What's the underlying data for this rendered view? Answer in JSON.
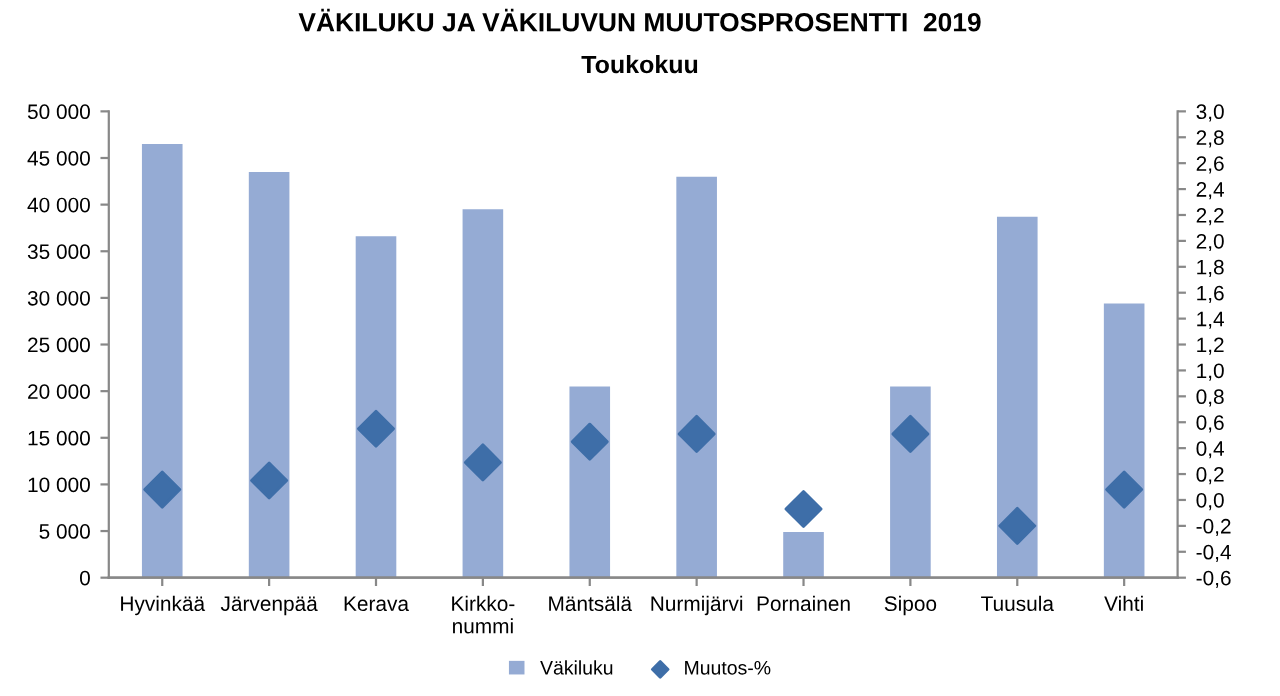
{
  "chart_data": {
    "type": "bar",
    "title": "VÄKILUKU JA VÄKILUVUN MUUTOSPROSENTTI  2019",
    "subtitle": "Toukokuu",
    "categories": [
      "Hyvinkää",
      "Järvenpää",
      "Kerava",
      "Kirkko-\nnummi",
      "Mäntsälä",
      "Nurmijärvi",
      "Pornainen",
      "Sipoo",
      "Tuusula",
      "Vihti"
    ],
    "series": [
      {
        "name": "Väkiluku",
        "color": "#95abd4",
        "values": [
          46500,
          43500,
          36600,
          39500,
          20500,
          43000,
          4900,
          20500,
          38700,
          29400
        ]
      },
      {
        "name": "Muutos-%",
        "type": "scatter",
        "axis": "y2",
        "marker": "diamond",
        "color": "#3e6ea8",
        "values": [
          0.08,
          0.15,
          0.55,
          0.29,
          0.45,
          0.51,
          -0.07,
          0.51,
          -0.2,
          0.08
        ]
      }
    ],
    "ylim": [
      0,
      50000
    ],
    "yticks": [
      0,
      {
        "value": 5000,
        "label": "5 000"
      },
      {
        "value": 10000,
        "label": "10 000"
      },
      {
        "value": 15000,
        "label": "15 000"
      },
      {
        "value": 20000,
        "label": "20 000"
      },
      {
        "value": 25000,
        "label": "25 000"
      },
      {
        "value": 30000,
        "label": "30 000"
      },
      {
        "value": 35000,
        "label": "35 000"
      },
      {
        "value": 40000,
        "label": "40 000"
      },
      {
        "value": 45000,
        "label": "45 000"
      },
      {
        "value": 50000,
        "label": "50 000"
      }
    ],
    "y2lim": [
      -0.6,
      3.0
    ],
    "y2ticks": [
      {
        "value": -0.6,
        "label": "-0,6"
      },
      {
        "value": -0.4,
        "label": "-0,4"
      },
      {
        "value": -0.2,
        "label": "-0,2"
      },
      {
        "value": 0.0,
        "label": "0,0"
      },
      {
        "value": 0.2,
        "label": "0,2"
      },
      {
        "value": 0.4,
        "label": "0,4"
      },
      {
        "value": 0.6,
        "label": "0,6"
      },
      {
        "value": 0.8,
        "label": "0,8"
      },
      {
        "value": 1.0,
        "label": "1,0"
      },
      {
        "value": 1.2,
        "label": "1,2"
      },
      {
        "value": 1.4,
        "label": "1,4"
      },
      {
        "value": 1.6,
        "label": "1,6"
      },
      {
        "value": 1.8,
        "label": "1,8"
      },
      {
        "value": 2.0,
        "label": "2,0"
      },
      {
        "value": 2.2,
        "label": "2,2"
      },
      {
        "value": 2.4,
        "label": "2,4"
      },
      {
        "value": 2.6,
        "label": "2,6"
      },
      {
        "value": 2.8,
        "label": "2,8"
      },
      {
        "value": 3.0,
        "label": "3,0"
      }
    ],
    "grid": false,
    "legend": "bottom"
  }
}
